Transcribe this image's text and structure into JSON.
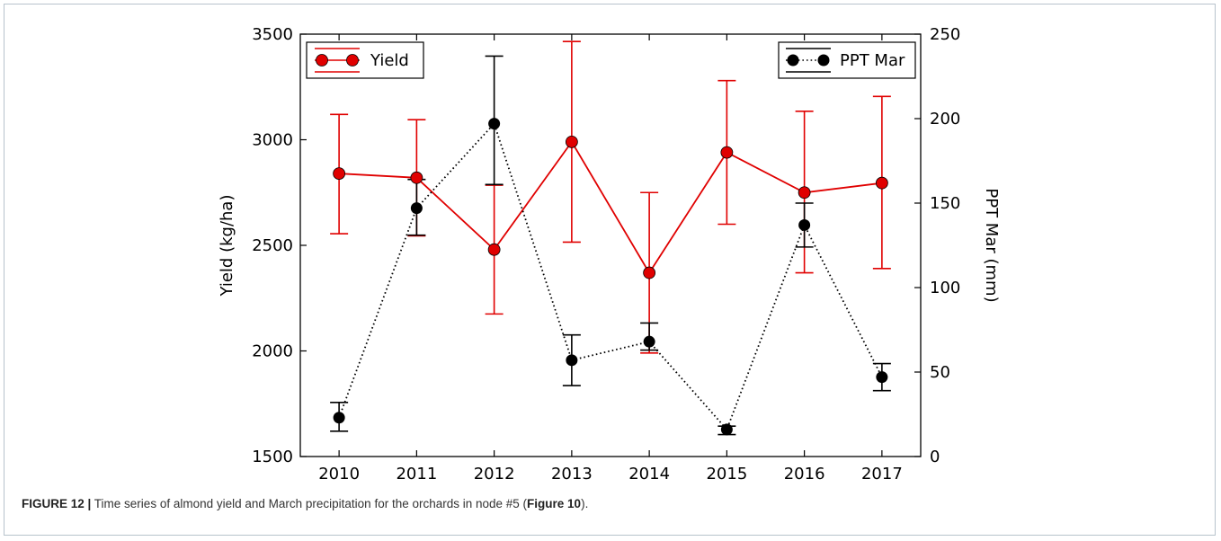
{
  "caption": {
    "figure_label": "FIGURE 12 |",
    "text_before": " Time series of almond yield and March precipitation for the orchards in node #5 (",
    "ref": "Figure 10",
    "text_after": ")."
  },
  "chart_data": {
    "type": "line",
    "x": [
      2010,
      2011,
      2012,
      2013,
      2014,
      2015,
      2016,
      2017
    ],
    "xlim": [
      2009.5,
      2017.5
    ],
    "ylabel": "Yield (kg/ha)",
    "ylim": [
      1500,
      3500
    ],
    "yticks": [
      1500,
      2000,
      2500,
      3000,
      3500
    ],
    "y2label": "PPT Mar (mm)",
    "y2lim": [
      0,
      250
    ],
    "y2ticks": [
      0,
      50,
      100,
      150,
      200,
      250
    ],
    "grid": false,
    "series": [
      {
        "name": "Yield",
        "axis": "left",
        "color": "#e00000",
        "line": "solid",
        "values": [
          2840,
          2820,
          2480,
          2990,
          2370,
          2940,
          2750,
          2795
        ],
        "err_low": [
          2555,
          2545,
          2175,
          2515,
          1990,
          2600,
          2370,
          2390
        ],
        "err_high": [
          3120,
          3095,
          2785,
          3465,
          2750,
          3280,
          3135,
          3205
        ],
        "legend_position": "top-left"
      },
      {
        "name": "PPT Mar",
        "axis": "right",
        "color": "#000000",
        "line": "dotted",
        "values": [
          23,
          147,
          197,
          57,
          68,
          16,
          137,
          47
        ],
        "err_low": [
          15,
          131,
          161,
          42,
          63,
          13,
          124,
          39
        ],
        "err_high": [
          32,
          164,
          237,
          72,
          79,
          18,
          150,
          55
        ],
        "legend_position": "top-right"
      }
    ]
  }
}
